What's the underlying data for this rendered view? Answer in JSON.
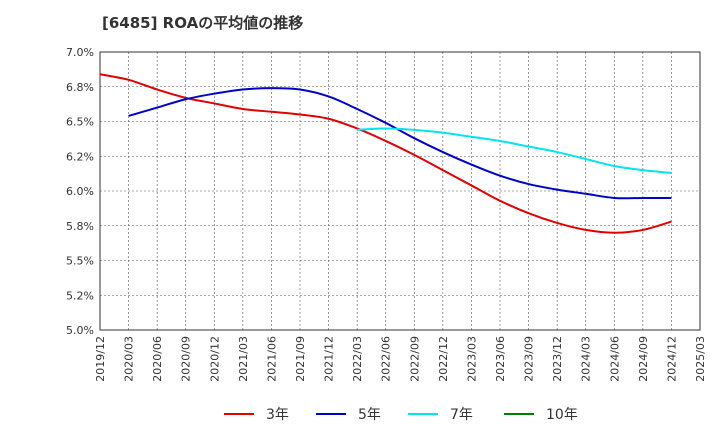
{
  "chart_data": {
    "type": "line",
    "title": "[6485]  ROAの平均値の推移",
    "y_ticks": [
      "7.0%",
      "6.8%",
      "6.5%",
      "6.2%",
      "6.0%",
      "5.8%",
      "5.5%",
      "5.2%",
      "5.0%"
    ],
    "ylim": [
      5.0,
      7.0
    ],
    "x": [
      "2019/12",
      "2020/03",
      "2020/06",
      "2020/09",
      "2020/12",
      "2021/03",
      "2021/06",
      "2021/09",
      "2021/12",
      "2022/03",
      "2022/06",
      "2022/09",
      "2022/12",
      "2023/03",
      "2023/06",
      "2023/09",
      "2023/12",
      "2024/03",
      "2024/06",
      "2024/09",
      "2024/12",
      "2025/03"
    ],
    "grid": true,
    "legend_position": "bottom",
    "series": [
      {
        "name": "3年",
        "color": "#e00000",
        "values": [
          6.84,
          6.8,
          6.73,
          6.67,
          6.63,
          6.59,
          6.57,
          6.55,
          6.52,
          6.45,
          6.36,
          6.26,
          6.15,
          6.04,
          5.93,
          5.84,
          5.77,
          5.72,
          5.7,
          5.72,
          5.78,
          null
        ]
      },
      {
        "name": "5年",
        "color": "#0000cc",
        "values": [
          null,
          6.54,
          6.6,
          6.66,
          6.7,
          6.73,
          6.74,
          6.73,
          6.68,
          6.59,
          6.49,
          6.38,
          6.28,
          6.19,
          6.11,
          6.05,
          6.01,
          5.98,
          5.95,
          5.95,
          5.95,
          null
        ]
      },
      {
        "name": "7年",
        "color": "#00e5ee",
        "values": [
          null,
          null,
          null,
          null,
          null,
          null,
          null,
          null,
          null,
          6.44,
          6.45,
          6.44,
          6.42,
          6.39,
          6.36,
          6.32,
          6.28,
          6.23,
          6.18,
          6.15,
          6.13,
          null
        ]
      },
      {
        "name": "10年",
        "color": "#008000",
        "values": [
          null,
          null,
          null,
          null,
          null,
          null,
          null,
          null,
          null,
          null,
          null,
          null,
          null,
          null,
          null,
          null,
          null,
          null,
          null,
          null,
          null,
          null
        ]
      }
    ]
  }
}
